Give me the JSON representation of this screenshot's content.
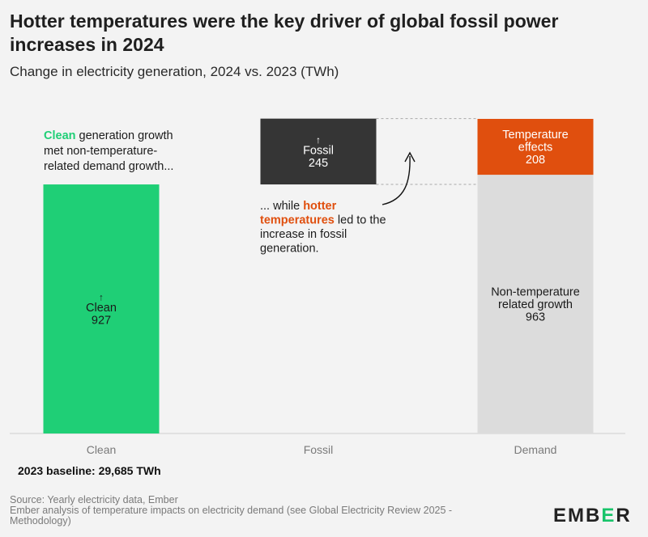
{
  "title": "Hotter temperatures were the key driver of global fossil power increases in 2024",
  "subtitle": "Change in electricity generation, 2024 vs. 2023 (TWh)",
  "chart_data": {
    "type": "bar",
    "categories": [
      "Clean",
      "Fossil",
      "Demand"
    ],
    "bars": [
      {
        "category": "Clean",
        "label": "Clean",
        "value": 927,
        "base": 0,
        "color": "#1fcf76",
        "text_color": "#1a1a1a",
        "arrow": true
      },
      {
        "category": "Fossil",
        "label": "Fossil",
        "value": 245,
        "base": 927,
        "color": "#353535",
        "text_color": "#ffffff",
        "arrow": true
      },
      {
        "category": "Demand",
        "label": "Non-temperature related growth",
        "value": 963,
        "base": 0,
        "color": "#dcdcdc",
        "text_color": "#1a1a1a",
        "arrow": false
      },
      {
        "category": "Demand",
        "label": "Temperature effects",
        "value": 208,
        "base": 963,
        "color": "#e04f0e",
        "text_color": "#ffffff",
        "arrow": false
      }
    ],
    "ylim": [
      0,
      1171
    ],
    "colors": {
      "clean": "#1fcf76",
      "fossil": "#353535",
      "demand_base": "#dcdcdc",
      "temperature": "#e04f0e"
    },
    "annotations": {
      "clean_note": [
        [
          {
            "text": "Clean",
            "highlight": "green"
          },
          {
            "text": " generation growth"
          }
        ],
        [
          {
            "text": "met non-temperature-"
          }
        ],
        [
          {
            "text": "related demand growth..."
          }
        ]
      ],
      "fossil_note": [
        [
          {
            "text": "... while "
          },
          {
            "text": "hotter",
            "highlight": "orange"
          }
        ],
        [
          {
            "text": "temperatures",
            "highlight": "orange"
          },
          {
            "text": " led to the"
          }
        ],
        [
          {
            "text": "increase in fossil"
          }
        ],
        [
          {
            "text": "generation."
          }
        ]
      ]
    }
  },
  "baseline_note": "2023 baseline: 29,685 TWh",
  "source_lines": [
    "Source: Yearly electricity data, Ember",
    "Ember analysis of temperature impacts on electricity demand (see Global Electricity Review 2025 -",
    "Methodology)"
  ],
  "logo": {
    "before": "EMB",
    "accent": "E",
    "after": "R"
  }
}
